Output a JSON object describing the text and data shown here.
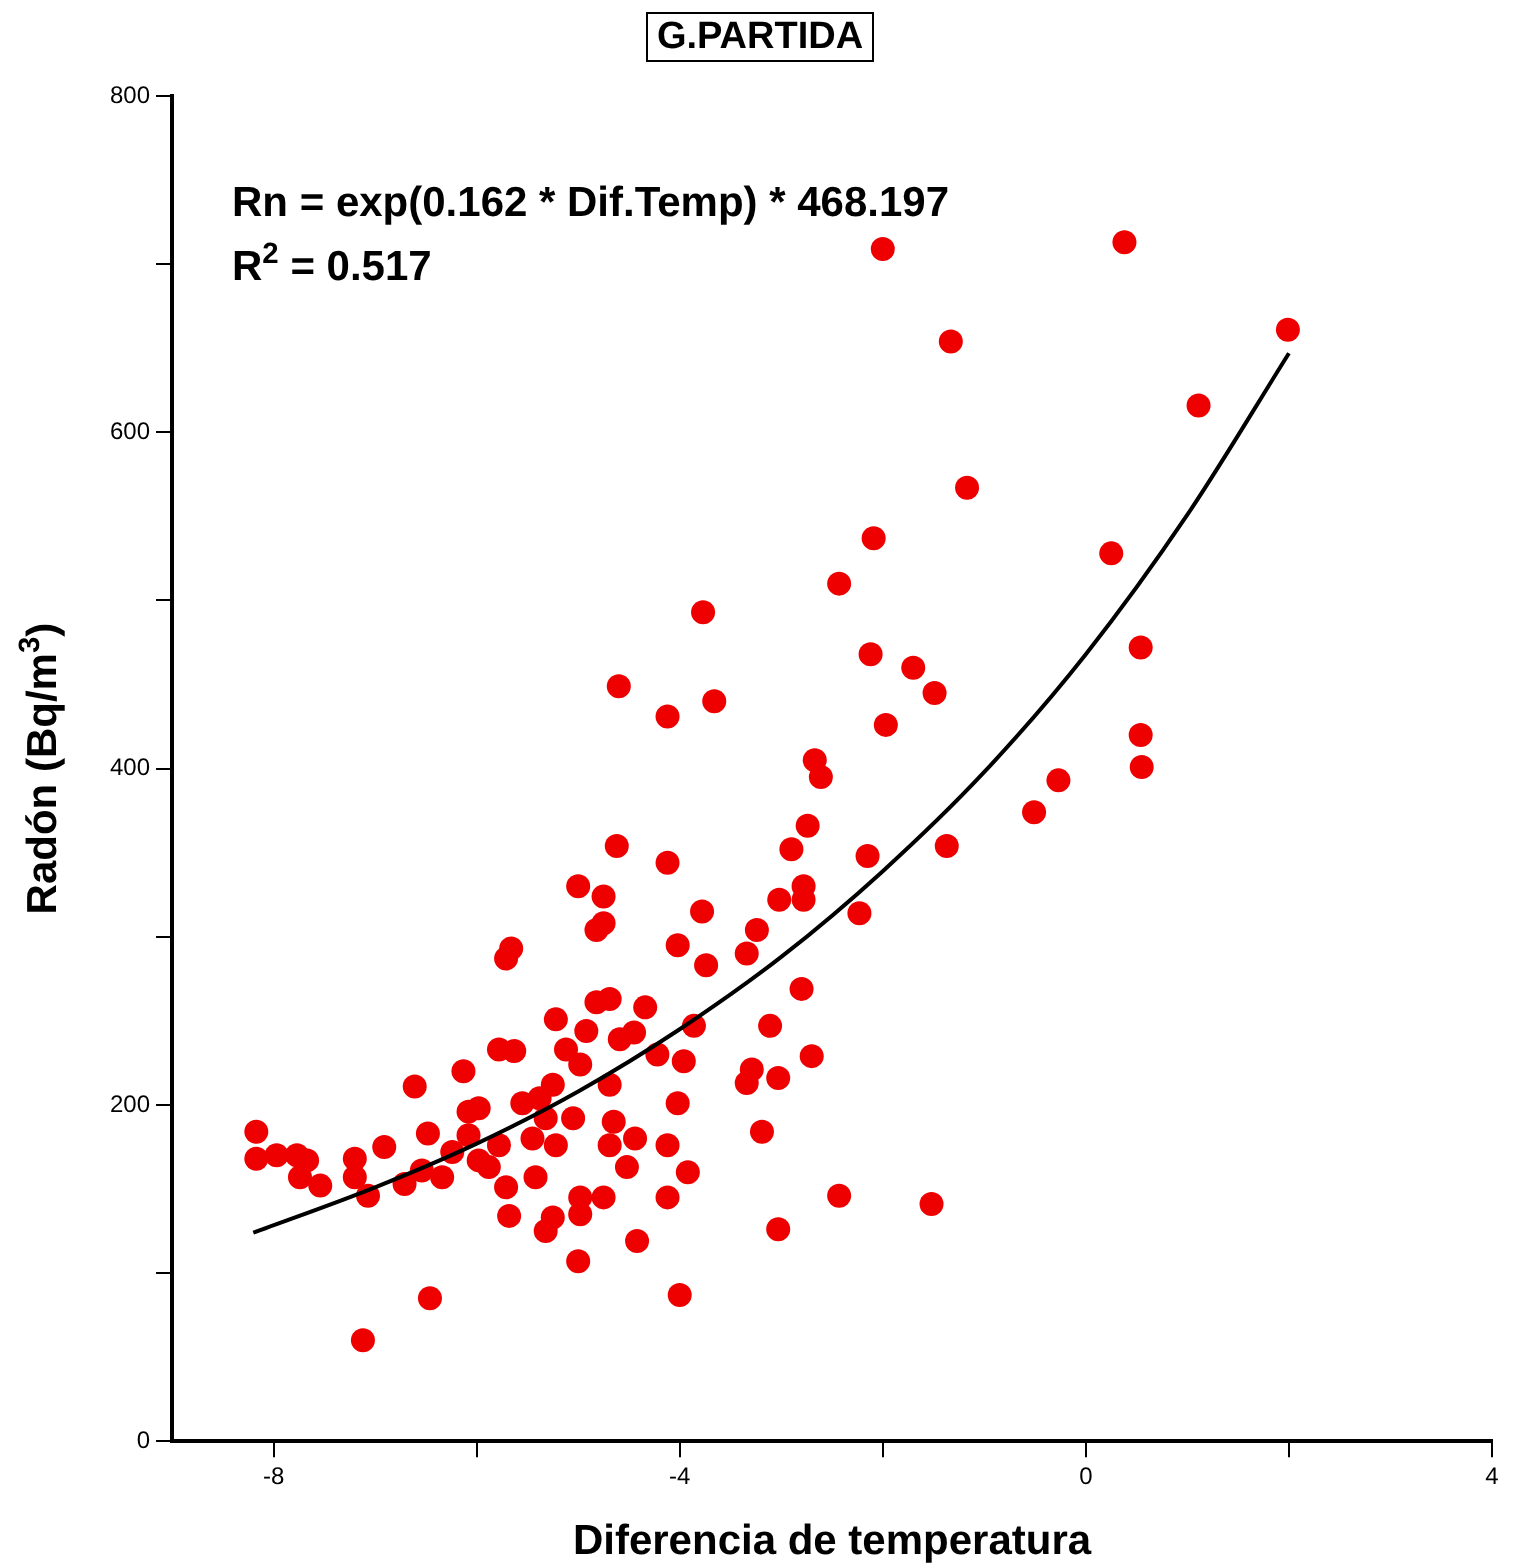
{
  "chart_data": {
    "type": "scatter",
    "title": "G.PARTIDA",
    "xlabel": "Diferencia de temperatura",
    "ylabel": "Radón (Bq/m$^{3}$)",
    "annotations": [
      "Rn = exp(0.162 * Dif.Temp) * 468.197",
      "R$^{2}$ = 0.517"
    ],
    "xlim": [
      -9,
      4
    ],
    "xticks": [
      -8,
      {
        "value": -6,
        "label": null
      },
      -4,
      {
        "value": -2,
        "label": null
      },
      0,
      {
        "value": 2,
        "label": null
      },
      4
    ],
    "ylim": [
      0,
      800
    ],
    "yticks": [
      0,
      {
        "value": 100,
        "label": null
      },
      200,
      {
        "value": 300,
        "label": null
      },
      400,
      {
        "value": 500,
        "label": null
      },
      600,
      {
        "value": 700,
        "label": null
      },
      800
    ],
    "grid": false,
    "legend": false,
    "marker": "circle",
    "series": [
      {
        "color": "#ee0000",
        "x": [
          -8.17,
          -8.17,
          -7.97,
          -7.77,
          -7.67,
          -7.74,
          -7.54,
          -7.2,
          -7.2,
          -6.91,
          -7.07,
          -7.12,
          -6.46,
          -6.71,
          -6.61,
          -6.48,
          -6.54,
          -6.34,
          -6.24,
          -6.13,
          -6.08,
          -5.98,
          -6.08,
          -5.98,
          -5.88,
          -5.78,
          -5.71,
          -5.68,
          -5.78,
          -5.63,
          -5.71,
          -5.66,
          -5.55,
          -5.45,
          -5.42,
          -5.38,
          -5.25,
          -5.32,
          -5.25,
          -5.32,
          -5.22,
          -5.22,
          -5.12,
          -5.05,
          -4.98,
          -5.0,
          -5.0,
          -4.98,
          -4.98,
          -4.92,
          -4.82,
          -4.75,
          -4.82,
          -4.75,
          -4.69,
          -4.75,
          -4.69,
          -4.65,
          -4.69,
          -4.62,
          -4.6,
          -4.59,
          -4.45,
          -4.52,
          -4.44,
          -4.42,
          -4.34,
          -4.22,
          -4.12,
          -4.12,
          -4.12,
          -4.12,
          -4.02,
          -3.96,
          -4.02,
          -3.92,
          -4.0,
          -3.86,
          -3.78,
          -3.74,
          -3.66,
          -3.77,
          -3.34,
          -3.29,
          -3.34,
          -3.24,
          -3.19,
          -3.11,
          -3.03,
          -3.03,
          -3.02,
          -2.9,
          -2.8,
          -2.78,
          -2.78,
          -2.74,
          -2.7,
          -2.67,
          -2.61,
          -2.43,
          -2.23,
          -2.15,
          -2.12,
          -1.97,
          -2.0,
          0.38,
          1.99,
          -1.33,
          1.11,
          -1.17,
          -2.09,
          -2.43,
          0.25,
          0.54,
          -1.7,
          -1.49,
          0.54,
          0.55,
          -0.27,
          -0.51,
          -1.37,
          -1.52
        ],
        "values": [
          184,
          168,
          170,
          170,
          167,
          157,
          152,
          168,
          157,
          175,
          146,
          60,
          85,
          153,
          211,
          183,
          161,
          157,
          172,
          220,
          196,
          198,
          182,
          167,
          163,
          176,
          151,
          134,
          233,
          232,
          287,
          293,
          201,
          180,
          157,
          204,
          212,
          125,
          133,
          192,
          176,
          251,
          233,
          192,
          224,
          330,
          107,
          135,
          145,
          244,
          261,
          324,
          304,
          308,
          263,
          145,
          212,
          190,
          176,
          354,
          449,
          239,
          243,
          163,
          180,
          119,
          258,
          230,
          431,
          344,
          176,
          145,
          295,
          226,
          201,
          160,
          87,
          247,
          315,
          283,
          440,
          493,
          213,
          221,
          290,
          304,
          184,
          247,
          216,
          126,
          322,
          352,
          269,
          330,
          322,
          366,
          229,
          405,
          395,
          146,
          314,
          348,
          468,
          426,
          709,
          713,
          661,
          654,
          616,
          567,
          537,
          510,
          528,
          472,
          460,
          445,
          420,
          401,
          393,
          374,
          354,
          141
        ]
      },
      {
        "type": "line",
        "color": "#000000",
        "marker": "none",
        "x": [
          -8.2,
          -7,
          -6,
          -5,
          -4,
          -3,
          -2,
          -1,
          0,
          1,
          2
        ],
        "values": [
          124,
          151,
          177,
          208,
          245,
          288,
          339,
          398,
          468,
          551,
          647
        ]
      }
    ]
  }
}
